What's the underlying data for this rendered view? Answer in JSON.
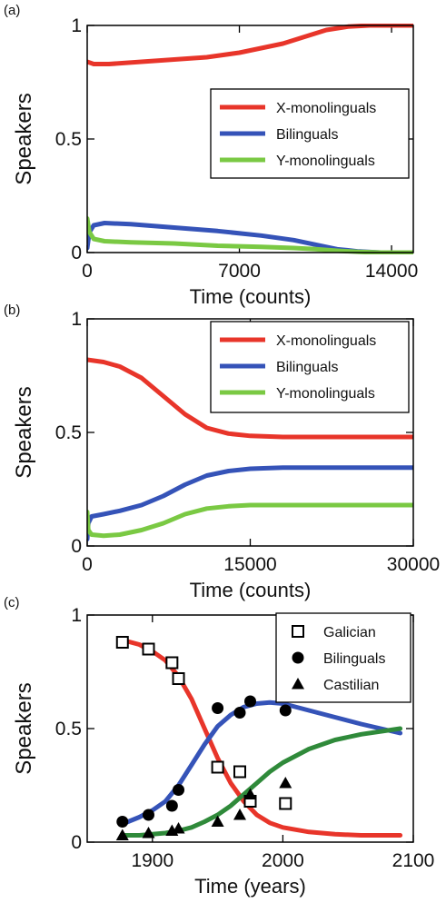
{
  "colors": {
    "x_mono": "#e8352a",
    "bilingual": "#3553b8",
    "y_mono": "#7ac943",
    "castilian_fit": "#2f8a3a",
    "marker": "#000000"
  },
  "chart_data": [
    {
      "panel_label": "(a)",
      "type": "line",
      "xlabel": "Time (counts)",
      "ylabel": "Speakers",
      "xlim": [
        0,
        15000
      ],
      "ylim": [
        0,
        1
      ],
      "xticks": [
        0,
        7000,
        14000
      ],
      "xtick_labels": [
        "0",
        "7000",
        "14000"
      ],
      "yticks": [
        0,
        0.5,
        1
      ],
      "ytick_labels": [
        "0",
        "0.5",
        "1"
      ],
      "legend_position": "center-right",
      "series": [
        {
          "name": "X-monolinguals",
          "color_key": "x_mono",
          "x": [
            0,
            300,
            1000,
            2500,
            4000,
            5500,
            7000,
            8000,
            9000,
            10000,
            11000,
            12000,
            13000,
            14000,
            15000
          ],
          "y": [
            0.84,
            0.83,
            0.83,
            0.84,
            0.85,
            0.86,
            0.88,
            0.9,
            0.92,
            0.95,
            0.98,
            0.995,
            1.0,
            1.0,
            1.0
          ]
        },
        {
          "name": "Bilinguals",
          "color_key": "bilingual",
          "x": [
            0,
            100,
            300,
            800,
            2000,
            4000,
            6000,
            8000,
            9500,
            10500,
            11500,
            12500,
            13500,
            15000
          ],
          "y": [
            0.02,
            0.09,
            0.12,
            0.13,
            0.125,
            0.11,
            0.095,
            0.075,
            0.055,
            0.035,
            0.015,
            0.005,
            0.0,
            0.0
          ]
        },
        {
          "name": "Y-monolinguals",
          "color_key": "y_mono",
          "x": [
            0,
            100,
            300,
            800,
            2000,
            4000,
            6000,
            8000,
            9500,
            10500,
            11500,
            12500,
            13500,
            15000
          ],
          "y": [
            0.15,
            0.09,
            0.06,
            0.05,
            0.045,
            0.04,
            0.03,
            0.025,
            0.02,
            0.015,
            0.008,
            0.003,
            0.0,
            0.0
          ]
        }
      ]
    },
    {
      "panel_label": "(b)",
      "type": "line",
      "xlabel": "Time (counts)",
      "ylabel": "Speakers",
      "xlim": [
        0,
        30000
      ],
      "ylim": [
        0,
        1
      ],
      "xticks": [
        0,
        15000,
        30000
      ],
      "xtick_labels": [
        "0",
        "15000",
        "30000"
      ],
      "yticks": [
        0,
        0.5,
        1
      ],
      "ytick_labels": [
        "0",
        "0.5",
        "1"
      ],
      "legend_position": "top-right",
      "series": [
        {
          "name": "X-monolinguals",
          "color_key": "x_mono",
          "x": [
            0,
            1500,
            3000,
            5000,
            7000,
            9000,
            11000,
            13000,
            15000,
            18000,
            21000,
            25000,
            30000
          ],
          "y": [
            0.82,
            0.81,
            0.79,
            0.74,
            0.66,
            0.58,
            0.52,
            0.495,
            0.485,
            0.48,
            0.48,
            0.48,
            0.48
          ]
        },
        {
          "name": "Bilinguals",
          "color_key": "bilingual",
          "x": [
            0,
            100,
            400,
            1500,
            3000,
            5000,
            7000,
            9000,
            11000,
            13000,
            15000,
            18000,
            21000,
            25000,
            30000
          ],
          "y": [
            0.03,
            0.1,
            0.13,
            0.14,
            0.155,
            0.18,
            0.22,
            0.27,
            0.31,
            0.33,
            0.34,
            0.345,
            0.345,
            0.345,
            0.345
          ]
        },
        {
          "name": "Y-monolinguals",
          "color_key": "y_mono",
          "x": [
            0,
            100,
            400,
            1500,
            3000,
            5000,
            7000,
            9000,
            11000,
            13000,
            15000,
            18000,
            21000,
            25000,
            30000
          ],
          "y": [
            0.15,
            0.07,
            0.05,
            0.045,
            0.05,
            0.07,
            0.1,
            0.14,
            0.165,
            0.175,
            0.18,
            0.18,
            0.18,
            0.18,
            0.18
          ]
        }
      ]
    },
    {
      "panel_label": "(c)",
      "type": "scatter",
      "xlabel": "Time (years)",
      "ylabel": "Speakers",
      "xlim": [
        1850,
        2100
      ],
      "ylim": [
        0,
        1
      ],
      "xticks": [
        1900,
        2000,
        2100
      ],
      "xtick_labels": [
        "1900",
        "2000",
        "2100"
      ],
      "yticks": [
        0,
        0.5,
        1
      ],
      "ytick_labels": [
        "0",
        "0.5",
        "1"
      ],
      "legend_position": "top-right",
      "points": [
        {
          "name": "Galician",
          "marker": "open-square",
          "x": [
            1877,
            1897,
            1915,
            1920,
            1950,
            1967,
            1975,
            2002
          ],
          "y": [
            0.88,
            0.85,
            0.79,
            0.72,
            0.33,
            0.31,
            0.18,
            0.17
          ]
        },
        {
          "name": "Bilinguals",
          "marker": "filled-circle",
          "x": [
            1877,
            1897,
            1915,
            1920,
            1950,
            1967,
            1975,
            2002
          ],
          "y": [
            0.09,
            0.12,
            0.16,
            0.23,
            0.59,
            0.57,
            0.62,
            0.58
          ]
        },
        {
          "name": "Castilian",
          "marker": "filled-triangle",
          "x": [
            1877,
            1897,
            1915,
            1920,
            1950,
            1967,
            1975,
            2002
          ],
          "y": [
            0.03,
            0.04,
            0.05,
            0.06,
            0.09,
            0.12,
            0.21,
            0.26
          ]
        }
      ],
      "fit_lines": [
        {
          "color_key": "x_mono",
          "x": [
            1877,
            1890,
            1900,
            1910,
            1920,
            1930,
            1940,
            1950,
            1960,
            1970,
            1980,
            1990,
            2000,
            2020,
            2040,
            2060,
            2090
          ],
          "y": [
            0.89,
            0.87,
            0.84,
            0.8,
            0.73,
            0.63,
            0.5,
            0.37,
            0.26,
            0.18,
            0.12,
            0.085,
            0.065,
            0.045,
            0.035,
            0.03,
            0.03
          ]
        },
        {
          "color_key": "bilingual",
          "x": [
            1877,
            1890,
            1900,
            1910,
            1920,
            1930,
            1940,
            1950,
            1960,
            1970,
            1980,
            1990,
            2000,
            2020,
            2040,
            2060,
            2090
          ],
          "y": [
            0.08,
            0.11,
            0.14,
            0.18,
            0.25,
            0.34,
            0.43,
            0.51,
            0.56,
            0.595,
            0.61,
            0.615,
            0.61,
            0.58,
            0.55,
            0.52,
            0.48
          ]
        },
        {
          "color_key": "castilian_fit",
          "x": [
            1877,
            1890,
            1900,
            1910,
            1920,
            1930,
            1940,
            1950,
            1960,
            1970,
            1980,
            1990,
            2000,
            2020,
            2040,
            2060,
            2090
          ],
          "y": [
            0.03,
            0.03,
            0.035,
            0.04,
            0.05,
            0.065,
            0.09,
            0.12,
            0.16,
            0.21,
            0.26,
            0.31,
            0.35,
            0.41,
            0.45,
            0.475,
            0.5
          ]
        }
      ]
    }
  ]
}
